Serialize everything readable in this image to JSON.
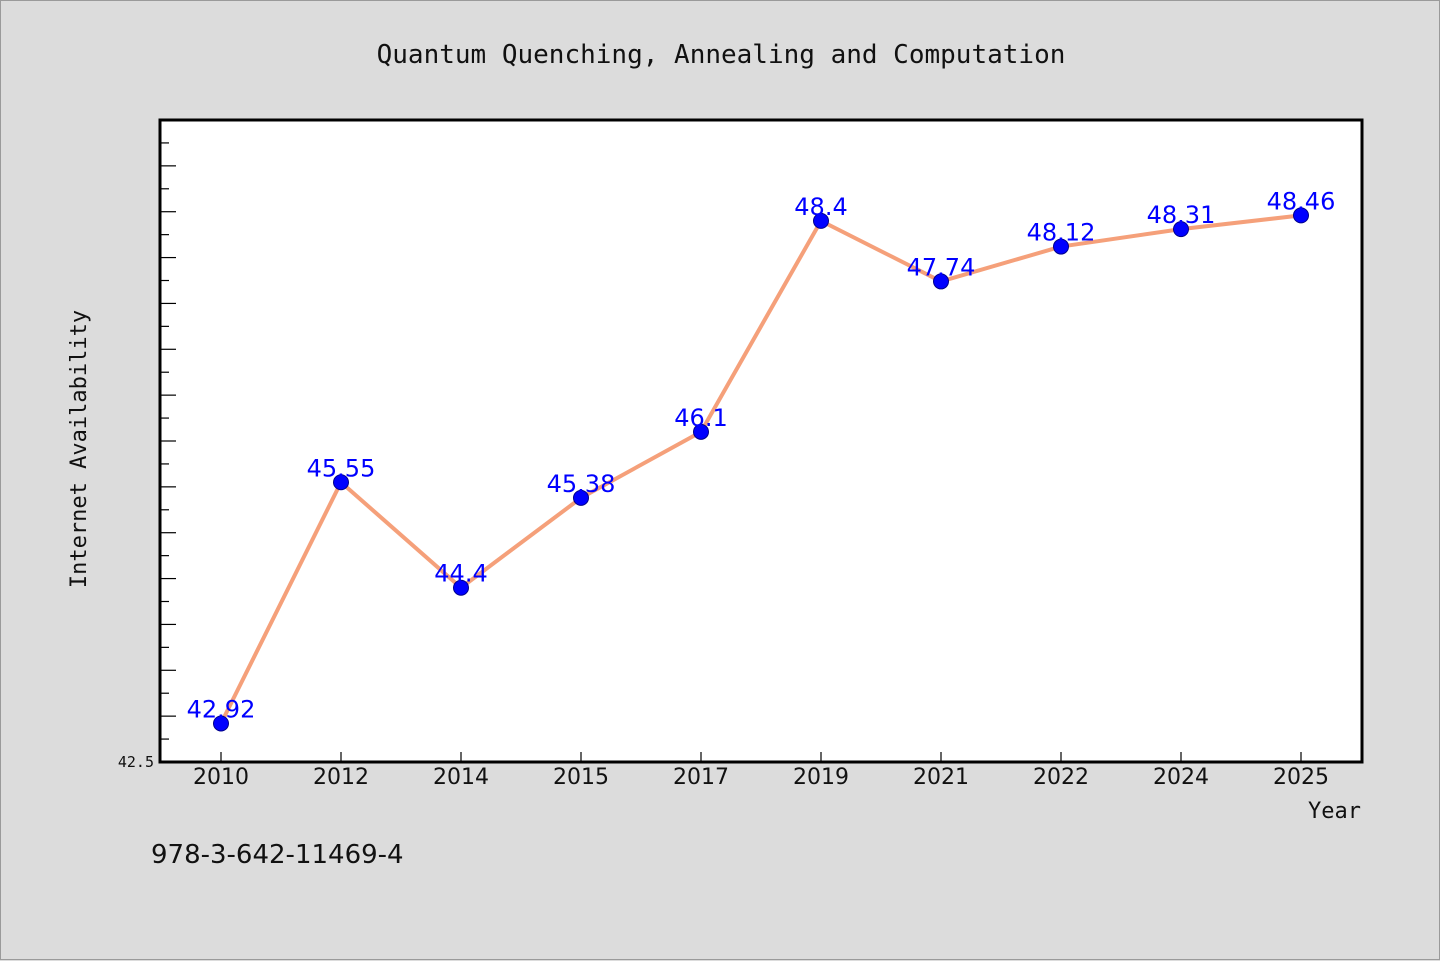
{
  "chart_data": {
    "type": "line",
    "title": "Quantum Quenching, Annealing and Computation",
    "xlabel": "Year",
    "ylabel": "Internet Availability",
    "categories": [
      "2010",
      "2012",
      "2014",
      "2015",
      "2017",
      "2019",
      "2021",
      "2022",
      "2024",
      "2025"
    ],
    "series": [
      {
        "values": [
          42.92,
          45.55,
          44.4,
          45.38,
          46.1,
          48.4,
          47.74,
          48.12,
          48.31,
          48.46
        ],
        "data_labels": [
          "42.92",
          "45.55",
          "44.4",
          "45.38",
          "46.1",
          "48.4",
          "47.74",
          "48.12",
          "48.31",
          "48.46"
        ],
        "line_color": "#f5a07a",
        "marker_color": "#0000ff",
        "label_color": "#0000ff"
      }
    ],
    "ylim": [
      42.5,
      49.5
    ],
    "yticks_labeled": [
      "42.5"
    ],
    "grid": false,
    "legend": "none"
  },
  "footer": {
    "isbn": "978-3-642-11469-4"
  },
  "colors": {
    "background": "#dcdcdc",
    "plot_background": "#ffffff",
    "axis": "#000000"
  }
}
